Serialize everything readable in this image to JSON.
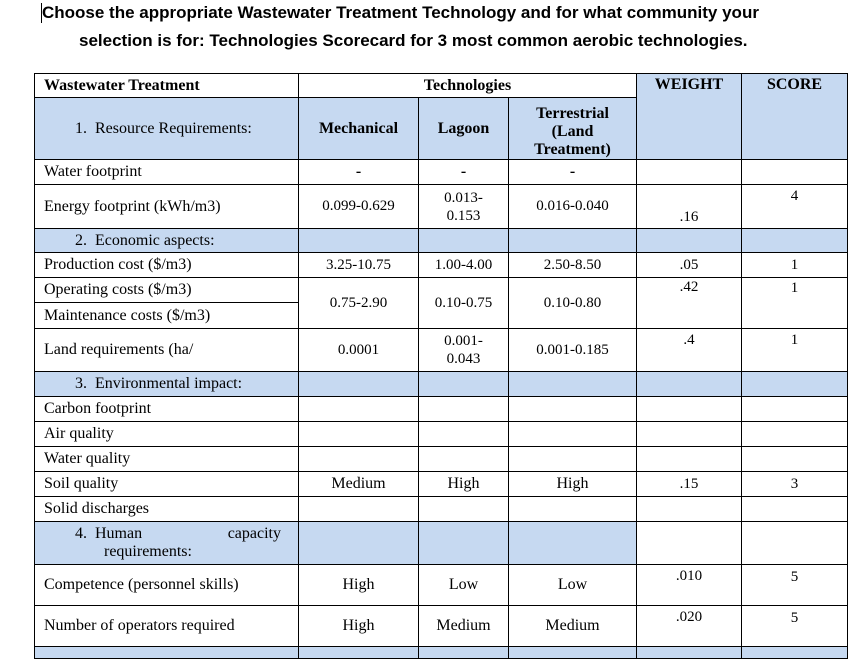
{
  "heading": {
    "line1": "Choose the appropriate Wastewater Treatment Technology and for what community your",
    "line2": "selection is for: Technologies Scorecard for 3 most common aerobic technologies."
  },
  "table": {
    "corner_label": "Wastewater Treatment",
    "technologies_label": "Technologies",
    "weight_label": "WEIGHT",
    "score_label": "SCORE",
    "section1": "1. Resource Requirements:",
    "tech_mechanical": "Mechanical",
    "tech_lagoon": "Lagoon",
    "tech_terrestrial_1": "Terrestrial",
    "tech_terrestrial_2": "(Land",
    "tech_terrestrial_3": "Treatment)",
    "water_footprint": {
      "label": "Water footprint",
      "mech": "-",
      "lagoon": "-",
      "terr": "-"
    },
    "energy_footprint": {
      "label": "Energy footprint (kWh/m3)",
      "mech": "0.099-0.629",
      "lagoon_1": "0.013-",
      "lagoon_2": "0.153",
      "terr": "0.016-0.040",
      "weight": ".16",
      "score": "4"
    },
    "section2": "2. Economic aspects:",
    "production_cost": {
      "label": "Production cost ($/m3)",
      "mech": "3.25-10.75",
      "lagoon": "1.00-4.00",
      "terr": "2.50-8.50",
      "weight": ".05",
      "score": "1"
    },
    "operating_costs": {
      "label": "Operating costs ($/m3)",
      "weight": ".42",
      "score": "1"
    },
    "maintenance_costs": {
      "label": "Maintenance costs ($/m3)"
    },
    "op_maint_values": {
      "mech": "0.75-2.90",
      "lagoon": "0.10-0.75",
      "terr": "0.10-0.80"
    },
    "land_requirements": {
      "label": "Land requirements (ha/",
      "mech": "0.0001",
      "lagoon_1": "0.001-",
      "lagoon_2": "0.043",
      "terr": "0.001-0.185",
      "weight": ".4",
      "score": "1"
    },
    "section3": "3. Environmental impact:",
    "carbon_footprint": {
      "label": "Carbon footprint"
    },
    "air_quality": {
      "label": "Air quality"
    },
    "water_quality": {
      "label": "Water quality"
    },
    "soil_quality": {
      "label": "Soil quality",
      "mech": "Medium",
      "lagoon": "High",
      "terr": "High",
      "weight": ".15",
      "score": "3"
    },
    "solid_discharges": {
      "label": "Solid discharges"
    },
    "section4_a": "4. Human",
    "section4_b": "capacity",
    "section4_c": "requirements:",
    "competence": {
      "label": "Competence (personnel skills)",
      "mech": "High",
      "lagoon": "Low",
      "terr": "Low",
      "weight": ".010",
      "score": "5"
    },
    "operators": {
      "label": "Number of operators required",
      "mech": "High",
      "lagoon": "Medium",
      "terr": "Medium",
      "weight": ".020",
      "score": "5"
    }
  }
}
